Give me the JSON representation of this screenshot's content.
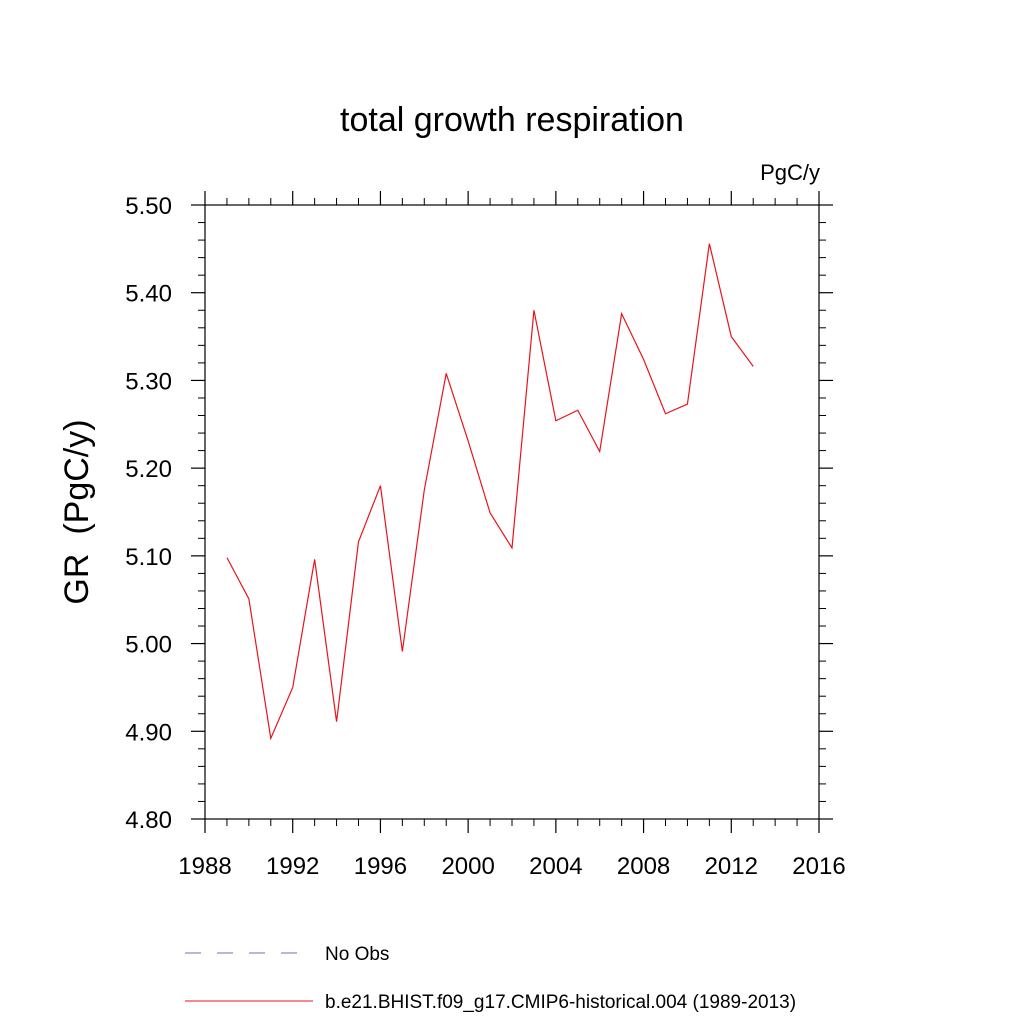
{
  "chart_data": {
    "type": "line",
    "title": "total growth respiration",
    "units": "PgC/y",
    "ylabel": "GR  (PgC/y)",
    "xlabel": "",
    "xlim": [
      1988,
      2016
    ],
    "ylim": [
      4.8,
      5.5
    ],
    "x_ticks": [
      1988,
      1992,
      1996,
      2000,
      2004,
      2008,
      2012,
      2016
    ],
    "x_tick_labels": [
      "1988",
      "1992",
      "1996",
      "2000",
      "2004",
      "2008",
      "2012",
      "2016"
    ],
    "y_ticks": [
      4.8,
      4.9,
      5.0,
      5.1,
      5.2,
      5.3,
      5.4,
      5.5
    ],
    "y_tick_labels": [
      "4.80",
      "4.90",
      "5.00",
      "5.10",
      "5.20",
      "5.30",
      "5.40",
      "5.50"
    ],
    "x_minor_step": 1,
    "y_minor_step": 0.02,
    "grid": false,
    "legend_position": "bottom",
    "series": [
      {
        "name": "b.e21.BHIST.f09_g17.CMIP6-historical.004 (1989-2013)",
        "color": "#e8141c",
        "style": "solid",
        "x": [
          1989,
          1990,
          1991,
          1992,
          1993,
          1994,
          1995,
          1996,
          1997,
          1998,
          1999,
          2000,
          2001,
          2002,
          2003,
          2004,
          2005,
          2006,
          2007,
          2008,
          2009,
          2010,
          2011,
          2012,
          2013
        ],
        "values": [
          5.098,
          5.051,
          4.892,
          4.95,
          5.096,
          4.911,
          5.116,
          5.18,
          4.991,
          5.175,
          5.308,
          5.231,
          5.149,
          5.109,
          5.38,
          5.254,
          5.266,
          5.219,
          5.376,
          5.324,
          5.262,
          5.273,
          5.456,
          5.35,
          5.316
        ]
      }
    ],
    "legend": [
      {
        "label": "No Obs",
        "color": "#7a6fb5",
        "style": "dashed"
      },
      {
        "label": "b.e21.BHIST.f09_g17.CMIP6-historical.004 (1989-2013)",
        "color": "#e8141c",
        "style": "solid"
      }
    ]
  }
}
